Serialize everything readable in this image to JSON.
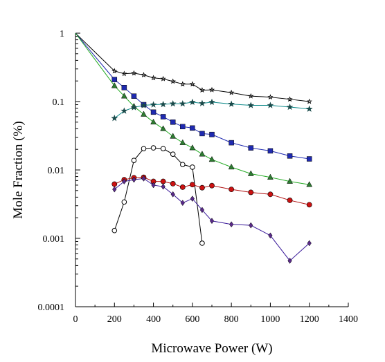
{
  "chart_data": {
    "type": "scatter",
    "xlabel": "Microwave Power (W)",
    "ylabel": "Mole Fraction (%)",
    "xlim": [
      0,
      1400
    ],
    "ylim": [
      0.0001,
      1
    ],
    "yscale": "log",
    "grid": false,
    "x_ticks": [
      "0",
      "200",
      "400",
      "600",
      "800",
      "1000",
      "1200",
      "1400"
    ],
    "y_ticks": [
      "0.0001",
      "0.001",
      "0.01",
      "0.1",
      "1"
    ],
    "series": [
      {
        "color": "#000000",
        "line_color": "#000000",
        "marker": "star-small",
        "x": [
          0,
          200,
          250,
          300,
          350,
          400,
          450,
          500,
          550,
          600,
          650,
          700,
          800,
          900,
          1000,
          1100,
          1200
        ],
        "y": [
          1,
          0.28,
          0.255,
          0.26,
          0.245,
          0.222,
          0.215,
          0.197,
          0.18,
          0.18,
          0.147,
          0.148,
          0.135,
          0.12,
          0.116,
          0.108,
          0.1
        ]
      },
      {
        "color": "#1f2ab0",
        "line_color": "#1f2ab0",
        "marker": "square",
        "x": [
          0,
          200,
          250,
          300,
          350,
          400,
          450,
          500,
          550,
          600,
          650,
          700,
          800,
          900,
          1000,
          1100,
          1200
        ],
        "y": [
          1,
          0.21,
          0.16,
          0.12,
          0.09,
          0.07,
          0.06,
          0.05,
          0.043,
          0.041,
          0.034,
          0.033,
          0.025,
          0.021,
          0.019,
          0.016,
          0.0145
        ]
      },
      {
        "color": "#2e7d32",
        "line_color": "#22aa22",
        "marker": "triangle",
        "x": [
          0,
          200,
          250,
          300,
          350,
          400,
          450,
          500,
          550,
          600,
          650,
          700,
          800,
          900,
          1000,
          1100,
          1200
        ],
        "y": [
          1,
          0.17,
          0.12,
          0.085,
          0.065,
          0.05,
          0.04,
          0.031,
          0.025,
          0.021,
          0.017,
          0.0142,
          0.011,
          0.0088,
          0.0078,
          0.0068,
          0.0061
        ]
      },
      {
        "color": "#1a4a4a",
        "line_color": "#0e8a8a",
        "marker": "star",
        "x": [
          200,
          250,
          300,
          350,
          400,
          450,
          500,
          550,
          600,
          650,
          700,
          800,
          900,
          1000,
          1100,
          1200
        ],
        "y": [
          0.057,
          0.073,
          0.082,
          0.088,
          0.09,
          0.091,
          0.093,
          0.093,
          0.098,
          0.094,
          0.098,
          0.092,
          0.088,
          0.088,
          0.083,
          0.078
        ]
      },
      {
        "color": "#000000",
        "line_color": "#000000",
        "marker": "circle-open",
        "x": [
          200,
          250,
          300,
          350,
          400,
          450,
          500,
          550,
          600,
          650
        ],
        "y": [
          0.0013,
          0.0034,
          0.0138,
          0.0205,
          0.021,
          0.0205,
          0.017,
          0.012,
          0.011,
          0.00085
        ]
      },
      {
        "color": "#cc1111",
        "line_color": "#b01010",
        "marker": "circle",
        "x": [
          200,
          250,
          300,
          350,
          400,
          450,
          500,
          550,
          600,
          650,
          700,
          800,
          900,
          1000,
          1100,
          1200
        ],
        "y": [
          0.0062,
          0.0072,
          0.0077,
          0.0078,
          0.0068,
          0.0068,
          0.0063,
          0.0056,
          0.0061,
          0.0055,
          0.0059,
          0.0052,
          0.0047,
          0.0044,
          0.0036,
          0.0031
        ]
      },
      {
        "color": "#5a2a8a",
        "line_color": "#3a1a9a",
        "marker": "diamond",
        "x": [
          200,
          250,
          300,
          350,
          400,
          450,
          500,
          550,
          600,
          650,
          700,
          800,
          900,
          1000,
          1100,
          1200
        ],
        "y": [
          0.0052,
          0.0068,
          0.0072,
          0.0075,
          0.006,
          0.0057,
          0.0044,
          0.0033,
          0.0038,
          0.0026,
          0.0018,
          0.0016,
          0.00155,
          0.0011,
          0.00047,
          0.00085
        ]
      }
    ]
  }
}
